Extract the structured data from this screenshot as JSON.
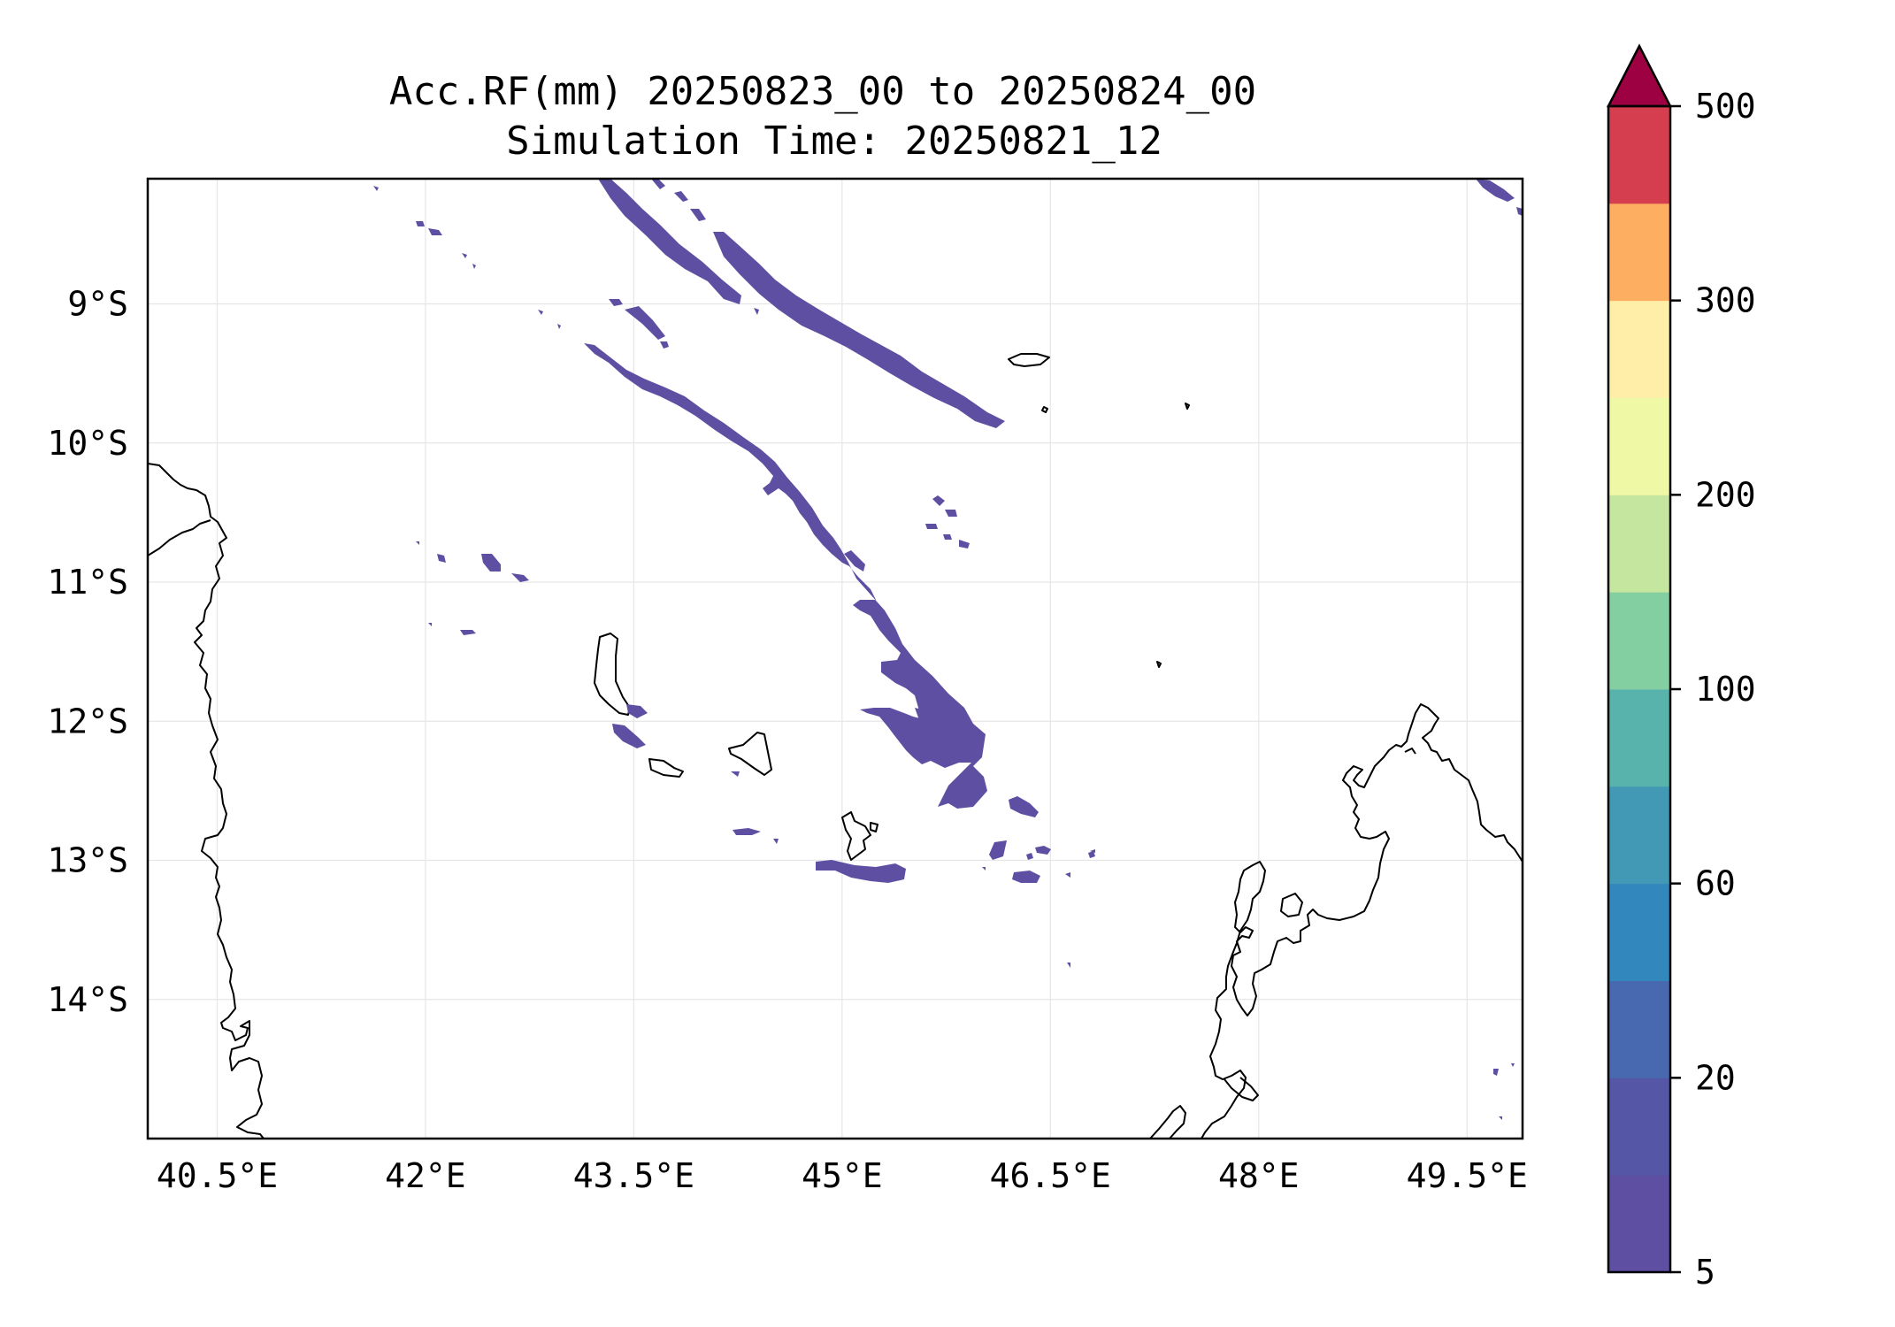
{
  "title": {
    "line1": "Acc.RF(mm) 20250823_00 to 20250824_00",
    "line2": "Simulation Time: 20250821_12"
  },
  "map": {
    "lon_range": [
      40.0,
      49.9
    ],
    "lat_range": [
      -15.0,
      -8.1
    ],
    "x_ticks": [
      {
        "value": 40.5,
        "label": "40.5°E"
      },
      {
        "value": 42.0,
        "label": "42°E"
      },
      {
        "value": 43.5,
        "label": "43.5°E"
      },
      {
        "value": 45.0,
        "label": "45°E"
      },
      {
        "value": 46.5,
        "label": "46.5°E"
      },
      {
        "value": 48.0,
        "label": "48°E"
      },
      {
        "value": 49.5,
        "label": "49.5°E"
      }
    ],
    "y_ticks": [
      {
        "value": -9,
        "label": "9°S"
      },
      {
        "value": -10,
        "label": "10°S"
      },
      {
        "value": -11,
        "label": "11°S"
      },
      {
        "value": -12,
        "label": "12°S"
      },
      {
        "value": -13,
        "label": "13°S"
      },
      {
        "value": -14,
        "label": "14°S"
      }
    ],
    "grid": true,
    "rain_color": "#5e4fa2"
  },
  "colorbar": {
    "levels": [
      5,
      10,
      20,
      40,
      60,
      80,
      100,
      150,
      200,
      250,
      300,
      400,
      500
    ],
    "tick_labels": [
      {
        "level": 5,
        "label": "5"
      },
      {
        "level": 20,
        "label": "20"
      },
      {
        "level": 60,
        "label": "60"
      },
      {
        "level": 100,
        "label": "100"
      },
      {
        "level": 200,
        "label": "200"
      },
      {
        "level": 300,
        "label": "300"
      },
      {
        "level": 500,
        "label": "500"
      }
    ],
    "colors": [
      "#5e4fa2",
      "#5556a6",
      "#4869b0",
      "#3288bd",
      "#4199b6",
      "#59b3ad",
      "#84cfa2",
      "#c4e69e",
      "#eef8a5",
      "#feeea8",
      "#fdae61",
      "#d53e4f"
    ],
    "extend_color": "#9e0142",
    "extend": "max"
  }
}
